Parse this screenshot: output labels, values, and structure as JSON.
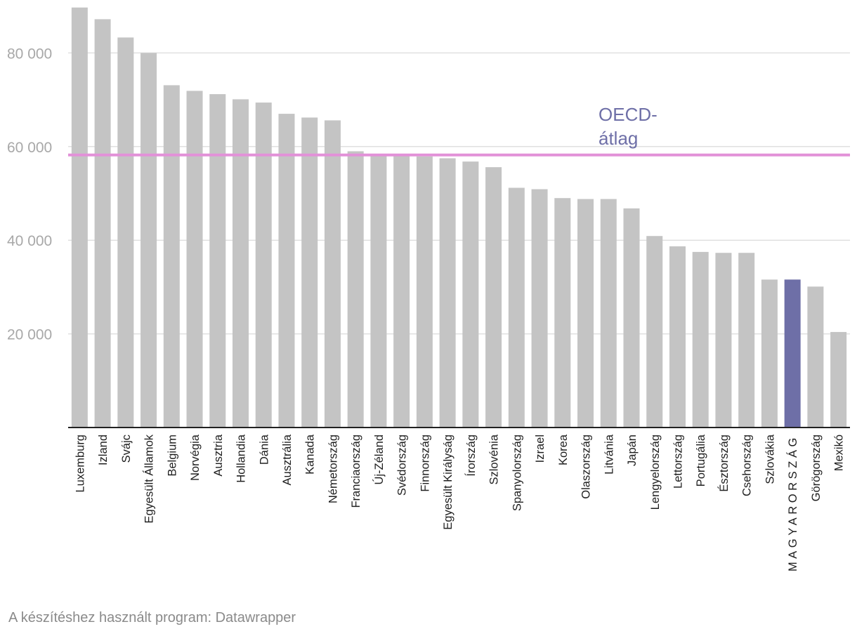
{
  "chart_data": {
    "type": "bar",
    "title": "",
    "xlabel": "",
    "ylabel": "",
    "ylim": [
      0,
      90000
    ],
    "yticks": [
      20000,
      40000,
      60000,
      80000
    ],
    "ytick_labels": [
      "20 000",
      "40 000",
      "60 000",
      "80 000"
    ],
    "grid": true,
    "categories": [
      "Luxemburg",
      "Izland",
      "Svájc",
      "Egyesült Államok",
      "Belgium",
      "Norvégia",
      "Ausztria",
      "Hollandia",
      "Dánia",
      "Ausztrália",
      "Kanada",
      "Németország",
      "Franciaország",
      "Új-Zéland",
      "Svédország",
      "Finnország",
      "Egyesült Királyság",
      "Írország",
      "Szlovénia",
      "Spanyolország",
      "Izrael",
      "Korea",
      "Olaszország",
      "Litvánia",
      "Japán",
      "Lengyelország",
      "Lettország",
      "Portugália",
      "Észtország",
      "Csehország",
      "Szlovákia",
      "MAGYARORSZÁG",
      "Görögország",
      "Mexikó"
    ],
    "values": [
      89700,
      87200,
      83300,
      80000,
      73100,
      71900,
      71200,
      70100,
      69400,
      67000,
      66200,
      65600,
      59000,
      58300,
      58200,
      57900,
      57500,
      56800,
      55600,
      51200,
      50900,
      49000,
      48800,
      48800,
      46800,
      40900,
      38700,
      37500,
      37300,
      37300,
      31600,
      31600,
      30100,
      20400
    ],
    "highlight_category": "MAGYARORSZÁG",
    "reference_line": {
      "value": 58200,
      "label_lines": [
        "OECD-",
        "átlag"
      ]
    },
    "colors": {
      "bar": "#c4c4c4",
      "highlight": "#6e6fa7",
      "reference_line": "#e291d8",
      "reference_label": "#6e6fa7",
      "gridline": "#e0e0e0",
      "axis": "#222222"
    }
  },
  "footer": {
    "credit": "A készítéshez használt program: Datawrapper"
  }
}
